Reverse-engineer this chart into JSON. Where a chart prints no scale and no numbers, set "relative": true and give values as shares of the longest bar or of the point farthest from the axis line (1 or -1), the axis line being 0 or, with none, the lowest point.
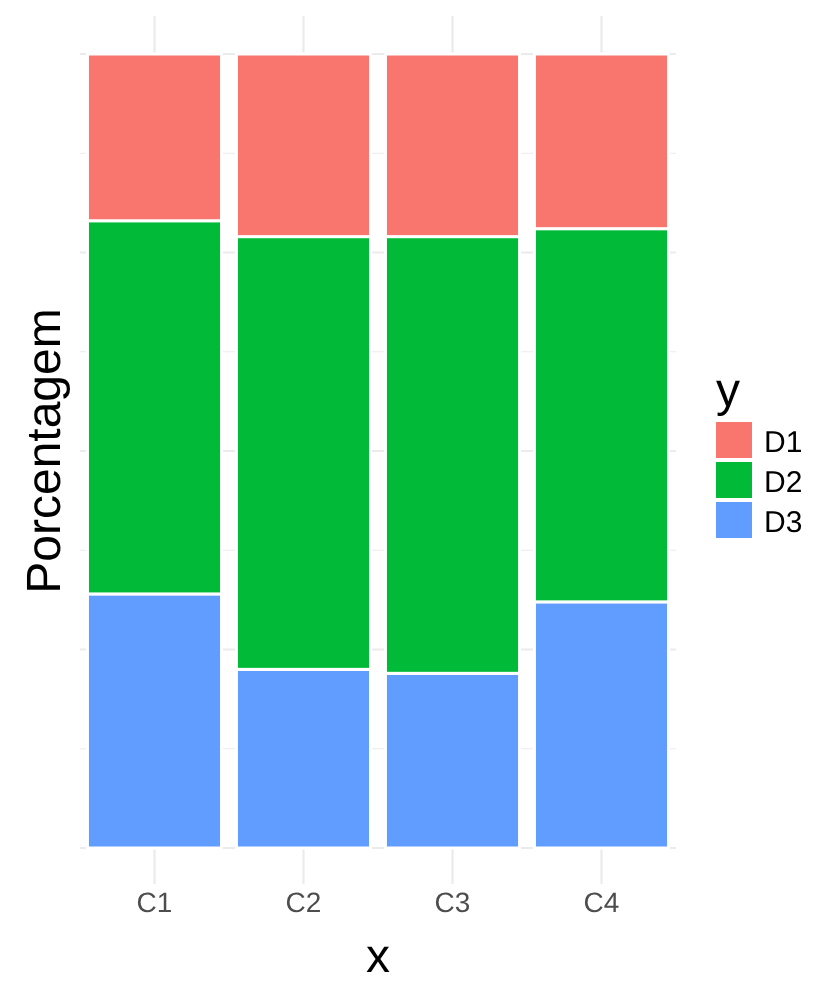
{
  "chart_data": {
    "type": "bar",
    "stacked": true,
    "relative": true,
    "xlabel": "x",
    "ylabel": "Porcentagem",
    "legend_title": "y",
    "legend": "right",
    "grid": true,
    "categories": [
      "C1",
      "C2",
      "C3",
      "C4"
    ],
    "series": [
      {
        "name": "D3",
        "color": "#619cff",
        "values": [
          0.32,
          0.225,
          0.22,
          0.31
        ]
      },
      {
        "name": "D2",
        "color": "#00ba38",
        "values": [
          0.47,
          0.545,
          0.55,
          0.47
        ]
      },
      {
        "name": "D1",
        "color": "#f8766d",
        "values": [
          0.21,
          0.23,
          0.23,
          0.22
        ]
      }
    ]
  }
}
